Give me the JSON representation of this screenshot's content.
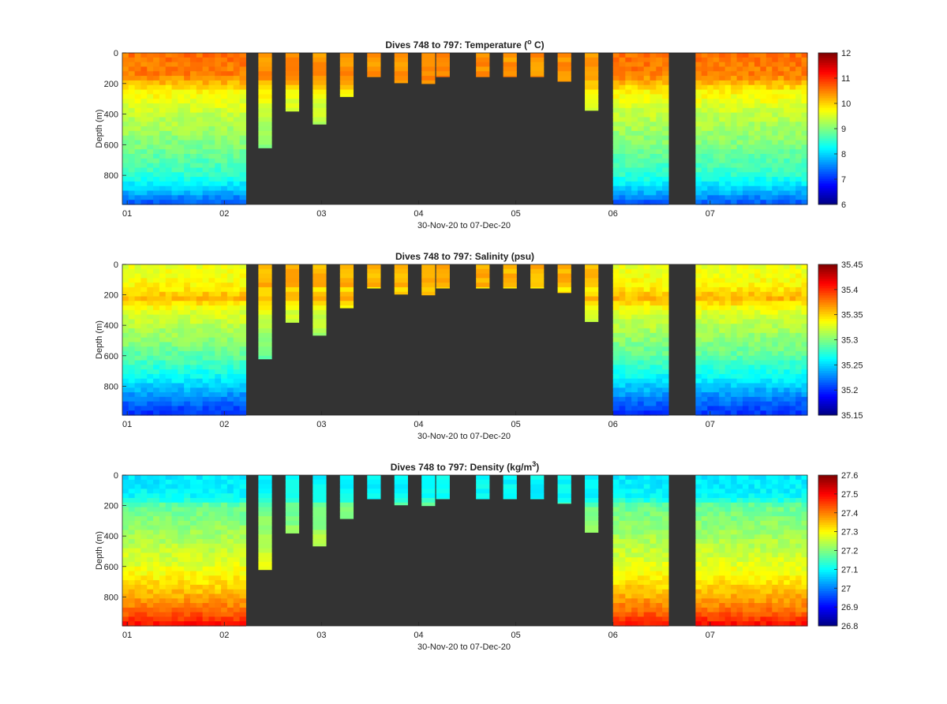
{
  "chart_data": [
    {
      "type": "heatmap",
      "title": "Dives 748 to 797: Temperature (",
      "title_sup": "o",
      "title_tail": " C)",
      "xlabel": "30-Nov-20 to 07-Dec-20",
      "ylabel": "Depth (m)",
      "xticks": [
        "01",
        "02",
        "03",
        "04",
        "05",
        "06",
        "07"
      ],
      "yticks": [
        "0",
        "200",
        "400",
        "600",
        "800"
      ],
      "ylim": [
        0,
        990
      ],
      "colormap": "jet",
      "clim": [
        6,
        12
      ],
      "colorbar_ticks": [
        "6",
        "7",
        "8",
        "9",
        "10",
        "11",
        "12"
      ],
      "background_color": "#333333",
      "profile": {
        "depth": [
          0,
          150,
          250,
          400,
          600,
          800,
          900,
          990
        ],
        "value": [
          10.6,
          10.5,
          9.8,
          9.4,
          9.0,
          8.5,
          7.9,
          7.2
        ]
      },
      "shallow_value": 10.4
    },
    {
      "type": "heatmap",
      "title": "Dives 748 to 797: Salinity (psu)",
      "xlabel": "30-Nov-20 to 07-Dec-20",
      "ylabel": "Depth (m)",
      "xticks": [
        "01",
        "02",
        "03",
        "04",
        "05",
        "06",
        "07"
      ],
      "yticks": [
        "0",
        "200",
        "400",
        "600",
        "800"
      ],
      "ylim": [
        0,
        990
      ],
      "colormap": "jet",
      "clim": [
        35.15,
        35.45
      ],
      "colorbar_ticks": [
        "35.15",
        "35.2",
        "35.25",
        "35.3",
        "35.35",
        "35.4",
        "35.45"
      ],
      "background_color": "#333333",
      "profile": {
        "depth": [
          0,
          150,
          220,
          300,
          450,
          600,
          750,
          900,
          990
        ],
        "value": [
          35.33,
          35.34,
          35.36,
          35.33,
          35.31,
          35.29,
          35.26,
          35.22,
          35.2
        ]
      },
      "shallow_value": 35.36
    },
    {
      "type": "heatmap",
      "title": "Dives 748 to 797: Density (kg/m",
      "title_sup": "3",
      "title_tail": ")",
      "xlabel": "30-Nov-20 to 07-Dec-20",
      "ylabel": "Depth (m)",
      "xticks": [
        "01",
        "02",
        "03",
        "04",
        "05",
        "06",
        "07"
      ],
      "yticks": [
        "0",
        "200",
        "400",
        "600",
        "800"
      ],
      "ylim": [
        0,
        990
      ],
      "colormap": "jet",
      "clim": [
        26.8,
        27.6
      ],
      "colorbar_ticks": [
        "26.8",
        "26.9",
        "27",
        "27.1",
        "27.2",
        "27.3",
        "27.4",
        "27.5",
        "27.6"
      ],
      "background_color": "#333333",
      "profile": {
        "depth": [
          0,
          150,
          200,
          400,
          600,
          750,
          900,
          990
        ],
        "value": [
          27.08,
          27.1,
          27.18,
          27.23,
          27.28,
          27.34,
          27.42,
          27.5
        ]
      },
      "shallow_value": 27.1
    }
  ],
  "dives": {
    "note_units": "x in days since 30-Nov-20 00:00, depth in m",
    "x_range": [
      0.95,
      8.0
    ],
    "deep_segments": [
      {
        "x0": 0.95,
        "x1": 2.22,
        "max_depth": 990
      },
      {
        "x0": 6.0,
        "x1": 6.57,
        "max_depth": 990
      },
      {
        "x0": 6.85,
        "x1": 8.0,
        "max_depth": 990
      }
    ],
    "shallow_dives": [
      {
        "x": 2.42,
        "max_depth": 620
      },
      {
        "x": 2.7,
        "max_depth": 380
      },
      {
        "x": 2.98,
        "max_depth": 465
      },
      {
        "x": 3.26,
        "max_depth": 285
      },
      {
        "x": 3.54,
        "max_depth": 155
      },
      {
        "x": 3.82,
        "max_depth": 195
      },
      {
        "x": 4.1,
        "max_depth": 200
      },
      {
        "x": 4.25,
        "max_depth": 155
      },
      {
        "x": 4.66,
        "max_depth": 155
      },
      {
        "x": 4.94,
        "max_depth": 155
      },
      {
        "x": 5.22,
        "max_depth": 155
      },
      {
        "x": 5.5,
        "max_depth": 185
      },
      {
        "x": 5.78,
        "max_depth": 375
      }
    ]
  }
}
